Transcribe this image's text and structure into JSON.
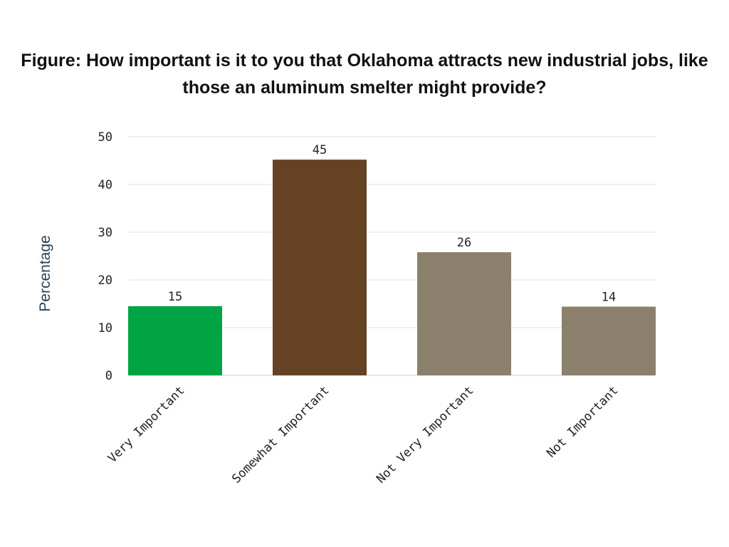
{
  "chart_data": {
    "type": "bar",
    "title": "Figure: How important is it to you that Oklahoma attracts new industrial jobs, like those an aluminum smelter might provide?",
    "xlabel": "",
    "ylabel": "Percentage",
    "categories": [
      "Very Important",
      "Somewhat Important",
      "Not Very Important",
      "Not Important"
    ],
    "values": [
      14.5,
      45.2,
      25.8,
      14.4
    ],
    "data_labels": [
      "15",
      "45",
      "26",
      "14"
    ],
    "colors": [
      "#00a443",
      "#664224",
      "#8a806c",
      "#8a806c"
    ],
    "ylim": [
      0,
      50
    ],
    "yticks": [
      0,
      10,
      20,
      30,
      40,
      50
    ],
    "grid": true,
    "legend": "none"
  }
}
